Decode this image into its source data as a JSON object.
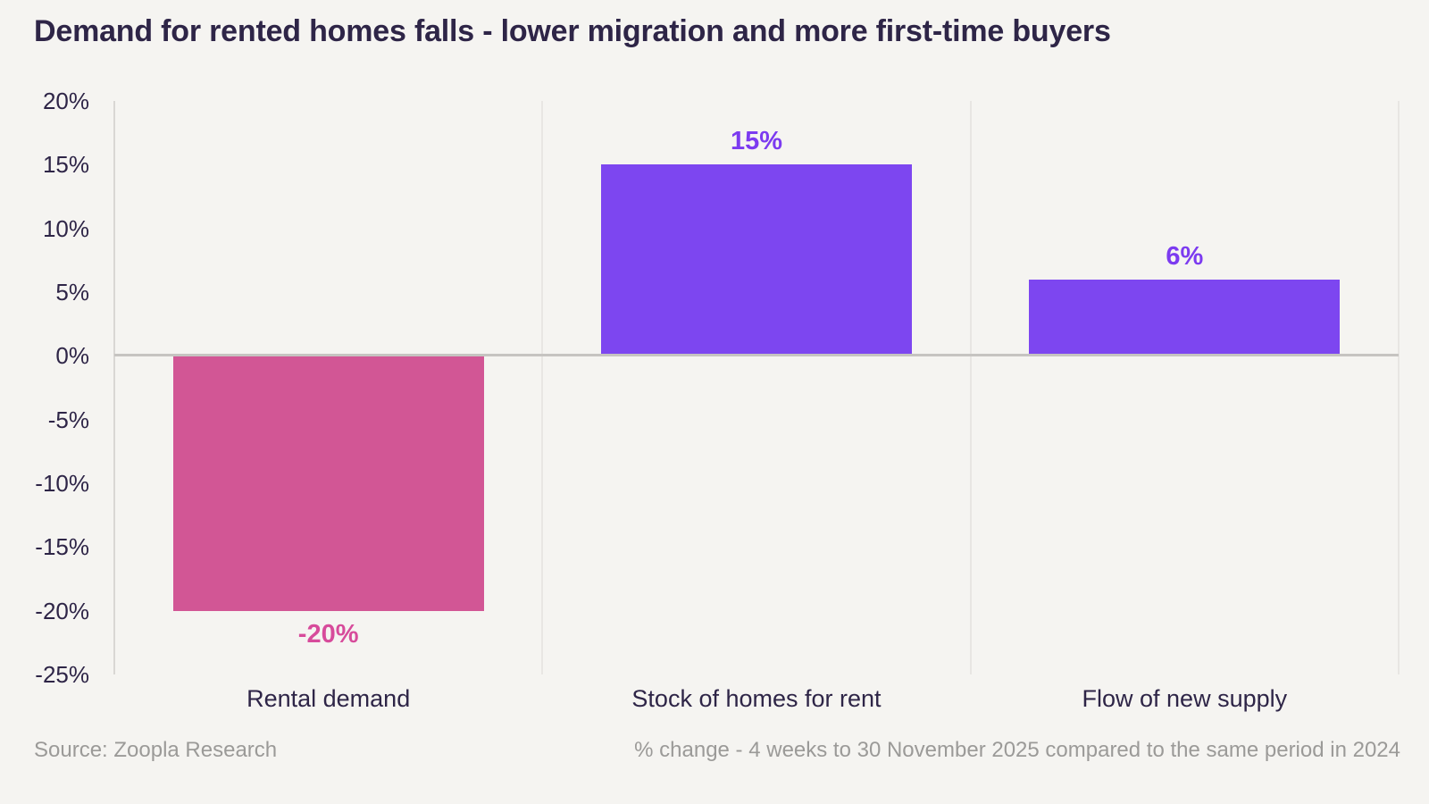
{
  "page": {
    "background": "#f5f4f1"
  },
  "chart_data": {
    "type": "bar",
    "title": "Demand for rented homes falls - lower migration and more first-time buyers",
    "title_color": "#2e2547",
    "categories": [
      "Rental demand",
      "Stock of homes for rent",
      "Flow of new supply"
    ],
    "values": [
      -20,
      15,
      6
    ],
    "value_labels": [
      "-20%",
      "15%",
      "6%"
    ],
    "bar_colors": [
      "#d25695",
      "#7d46f0",
      "#7d46f0"
    ],
    "value_label_colors": [
      "#d74b9b",
      "#7c3bf0",
      "#7c3bf0"
    ],
    "ylim": [
      -25,
      20
    ],
    "ytick_step": 5,
    "ytick_labels": [
      "20%",
      "15%",
      "10%",
      "5%",
      "0%",
      "-5%",
      "-10%",
      "-15%",
      "-20%",
      "-25%"
    ],
    "ytick_values": [
      20,
      15,
      10,
      5,
      0,
      -5,
      -10,
      -15,
      -20,
      -25
    ],
    "xlabel": "",
    "ylabel": "",
    "legend": "none",
    "grid": "vertical-column-separators-and-zero-line",
    "tick_label_color": "#2e2547",
    "category_label_color": "#2e2547",
    "grid_color": "#e8e6e3",
    "zero_line_color": "#c6c4c1",
    "axis_color": "#d9d7d4",
    "background_color": "#f5f4f1"
  },
  "footer": {
    "source": "Source: Zoopla Research",
    "note": "% change - 4 weeks to 30 November 2025 compared to the same period in 2024",
    "color": "#9b9a98"
  }
}
